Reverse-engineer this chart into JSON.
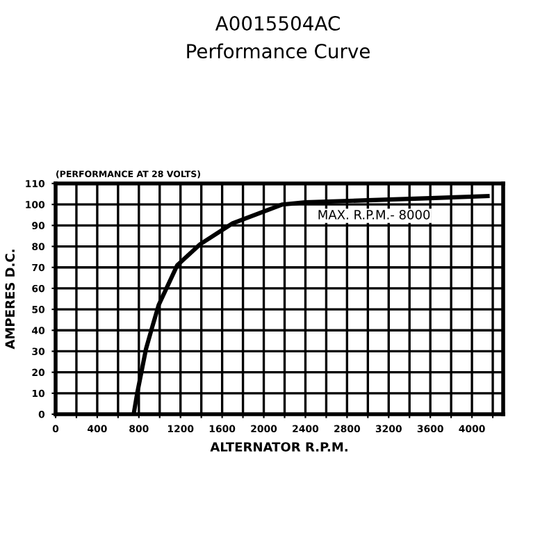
{
  "chart_data": {
    "type": "line",
    "title": "A0015504AC",
    "subtitle": "Performance Curve",
    "xlabel": "ALTERNATOR R.P.M.",
    "ylabel": "AMPERES D.C.",
    "annotations": [
      "(PERFORMANCE AT 28 VOLTS)",
      "MAX. R.P.M.- 8000"
    ],
    "xlim": [
      0,
      4300
    ],
    "ylim": [
      0,
      110
    ],
    "xticks": [
      0,
      {
        "value": 200,
        "label": null
      },
      400,
      {
        "value": 600,
        "label": null
      },
      800,
      {
        "value": 1000,
        "label": null
      },
      1200,
      {
        "value": 1400,
        "label": null
      },
      1600,
      {
        "value": 1800,
        "label": null
      },
      2000,
      {
        "value": 2200,
        "label": null
      },
      2400,
      {
        "value": 2600,
        "label": null
      },
      2800,
      {
        "value": 3000,
        "label": null
      },
      3200,
      {
        "value": 3400,
        "label": null
      },
      3600,
      {
        "value": 3800,
        "label": null
      },
      4000,
      {
        "value": 4200,
        "label": null
      }
    ],
    "yticks": [
      0,
      10,
      20,
      30,
      40,
      50,
      60,
      70,
      80,
      90,
      100,
      110
    ],
    "grid": true,
    "marker": "none",
    "line_style": "solid",
    "series": [
      {
        "color": "#000000",
        "x": [
          750,
          784,
          824,
          868,
          925,
          990,
          1168,
          1388,
          1700,
          2180,
          2400,
          3000,
          3600,
          4150
        ],
        "values": [
          0,
          10,
          20,
          31,
          41,
          52,
          71,
          81,
          91,
          100,
          101,
          102,
          103,
          104
        ]
      }
    ]
  }
}
